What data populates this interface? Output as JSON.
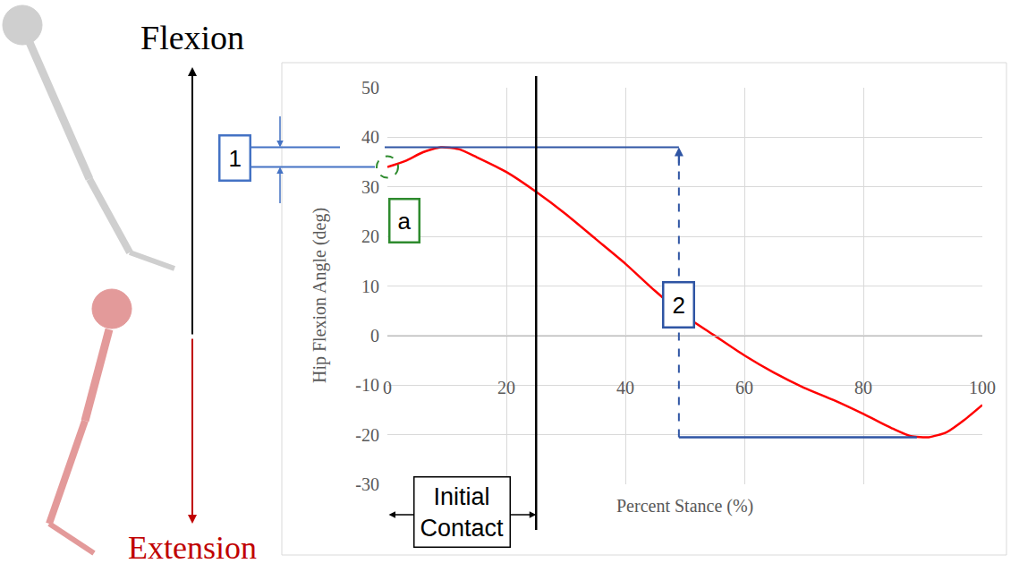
{
  "chart_data": {
    "type": "line",
    "x": [
      0,
      3,
      6,
      9,
      12,
      15,
      20,
      25,
      30,
      35,
      40,
      45,
      50,
      55,
      60,
      65,
      70,
      75,
      80,
      85,
      88,
      91,
      94,
      97,
      100
    ],
    "values": [
      34,
      35.2,
      37,
      38,
      37.6,
      36,
      33,
      29,
      24.5,
      19.5,
      14.5,
      9,
      4,
      0,
      -4,
      -7.5,
      -10.5,
      -13,
      -15.8,
      -18.8,
      -20.3,
      -20.5,
      -19.5,
      -17,
      -14
    ],
    "color": "#ff0000",
    "xlabel": "Percent Stance (%)",
    "ylabel": "Hip Flexion Angle (deg)",
    "xlim": [
      0,
      100
    ],
    "ylim": [
      -30,
      50
    ],
    "xticks": [
      0,
      20,
      40,
      60,
      80,
      100
    ],
    "yticks": [
      -30,
      -20,
      -10,
      0,
      10,
      20,
      30,
      40,
      50
    ],
    "grid": true,
    "annotations": [
      {
        "text": "Flexion",
        "color": "#000000"
      },
      {
        "text": "Extension",
        "color": "#c00000"
      },
      {
        "text": "1",
        "y": [
          34,
          38
        ],
        "color": "#4472c4"
      },
      {
        "text": "a",
        "x": 0,
        "y": 34,
        "color": "#2e8b2e"
      },
      {
        "text": "2",
        "x": [
          49,
          89
        ],
        "y": [
          -20.5,
          38
        ],
        "color": "#2f55a4"
      },
      {
        "text": "Initial Contact",
        "x": [
          0,
          25
        ],
        "color": "#000000"
      }
    ]
  }
}
